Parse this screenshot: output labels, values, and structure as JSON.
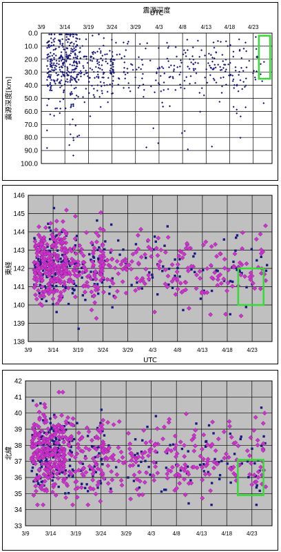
{
  "chart_data": [
    {
      "type": "scatter",
      "title": "震源深度",
      "xlabel": "UTC",
      "ylabel": "震源深度[km]",
      "x_axis_position": "top",
      "x_ticks": [
        "3/9",
        "3/14",
        "3/19",
        "3/24",
        "3/29",
        "4/3",
        "4/8",
        "4/13",
        "4/18",
        "4/23"
      ],
      "x_tick_days": [
        0,
        5,
        10,
        15,
        20,
        25,
        30,
        35,
        40,
        45
      ],
      "xlim": [
        0,
        49
      ],
      "ylim": [
        0,
        100
      ],
      "y_inverted": true,
      "y_ticks": [
        "0.0",
        "10.0",
        "20.0",
        "30.0",
        "40.0",
        "50.0",
        "60.0",
        "70.0",
        "80.0",
        "90.0",
        "100.0"
      ],
      "y_tick_values": [
        0,
        10,
        20,
        30,
        40,
        50,
        60,
        70,
        80,
        90,
        100
      ],
      "grid": true,
      "background": "#ffffff",
      "series": [
        {
          "color": "#1a1a80",
          "marker": "diamond",
          "cluster_note": "dense cluster 3/10–3/18 at 0–50 km, sparse 10–45 km thereafter"
        }
      ],
      "highlight": {
        "x_range": [
          46.2,
          48.6
        ],
        "y_range": [
          2,
          35
        ],
        "color": "#33dd33"
      }
    },
    {
      "type": "scatter",
      "title": "",
      "xlabel": "UTC",
      "ylabel": "東経",
      "x_ticks": [
        "3/9",
        "3/14",
        "3/19",
        "3/24",
        "3/29",
        "4/3",
        "4/8",
        "4/13",
        "4/18",
        "4/23"
      ],
      "x_tick_days": [
        0,
        5,
        10,
        15,
        20,
        25,
        30,
        35,
        40,
        45
      ],
      "xlim": [
        0,
        49
      ],
      "ylim": [
        138,
        146
      ],
      "y_ticks": [
        "138",
        "139",
        "140",
        "141",
        "142",
        "143",
        "144",
        "145",
        "146"
      ],
      "y_tick_values": [
        138,
        139,
        140,
        141,
        142,
        143,
        144,
        145,
        146
      ],
      "grid": true,
      "background": "#c0c0c0",
      "series": [
        {
          "color": "#cc33cc",
          "marker": "diamond"
        },
        {
          "color": "#1a1a80",
          "marker": "square"
        }
      ],
      "highlight": {
        "x_range": [
          42.2,
          47.3
        ],
        "y_range": [
          140.0,
          142.0
        ],
        "color": "#33dd33"
      }
    },
    {
      "type": "scatter",
      "title": "",
      "xlabel": "",
      "ylabel": "北緯",
      "x_ticks": [
        "3/9",
        "3/14",
        "3/19",
        "3/24",
        "3/29",
        "4/3",
        "4/8",
        "4/13",
        "4/18",
        "4/23"
      ],
      "x_tick_days": [
        0,
        5,
        10,
        15,
        20,
        25,
        30,
        35,
        40,
        45
      ],
      "xlim": [
        0,
        49
      ],
      "ylim": [
        33,
        42
      ],
      "y_ticks": [
        "33",
        "34",
        "35",
        "36",
        "37",
        "38",
        "39",
        "40",
        "41",
        "42"
      ],
      "y_tick_values": [
        33,
        34,
        35,
        36,
        37,
        38,
        39,
        40,
        41,
        42
      ],
      "grid": true,
      "background": "#c0c0c0",
      "series": [
        {
          "color": "#cc33cc",
          "marker": "diamond"
        },
        {
          "color": "#1a1a80",
          "marker": "square"
        }
      ],
      "highlight": {
        "x_range": [
          42.2,
          47.3
        ],
        "y_range": [
          34.9,
          37.1
        ],
        "color": "#33dd33"
      }
    }
  ]
}
